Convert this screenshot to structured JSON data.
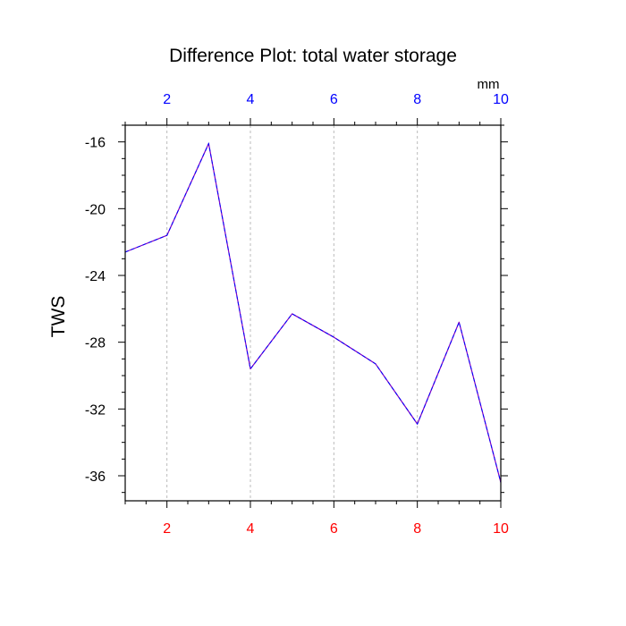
{
  "chart_data": {
    "type": "line",
    "title": "Difference Plot: total water storage",
    "ylabel": "TWS",
    "x_unit_label": "mm",
    "x": [
      1,
      2,
      3,
      4,
      5,
      6,
      7,
      8,
      9,
      10
    ],
    "xlim": [
      1,
      10
    ],
    "x_ticks": [
      2,
      4,
      6,
      8,
      10
    ],
    "ylim": [
      -37.5,
      -15
    ],
    "y_ticks": [
      -16,
      -20,
      -24,
      -28,
      -32,
      -36
    ],
    "series": [
      {
        "values": [
          -22.6,
          -21.6,
          -16.1,
          -29.6,
          -26.3,
          -27.7,
          -29.3,
          -32.9,
          -26.8,
          -36.4
        ]
      }
    ],
    "grid": "x-dashed",
    "colors": {
      "line_main": "#8000c0",
      "line_dash": "#0000ff",
      "bottom_ticks": "#ff0000",
      "top_ticks": "#0000ff",
      "grid": "#bbbbbb",
      "frame": "#000000"
    }
  }
}
